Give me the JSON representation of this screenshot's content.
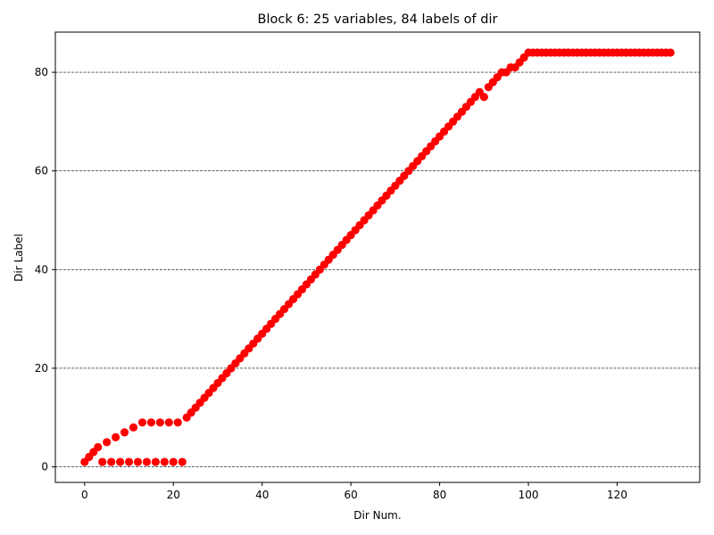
{
  "chart_data": {
    "type": "scatter",
    "title": "Block 6: 25 variables, 84 labels of dir",
    "xlabel": "Dir Num.",
    "ylabel": "Dir Label",
    "xlim": [
      -6.6,
      138.6
    ],
    "ylim": [
      -3.15,
      88.15
    ],
    "xticks": [
      0,
      20,
      40,
      60,
      80,
      100,
      120
    ],
    "yticks": [
      0,
      20,
      40,
      60,
      80
    ],
    "grid": {
      "axis": "y",
      "style": "dashed",
      "color": "#000000"
    },
    "marker_color": "#ff0000",
    "legend": "none",
    "points": [
      [
        0,
        1
      ],
      [
        1,
        2
      ],
      [
        2,
        3
      ],
      [
        3,
        4
      ],
      [
        4,
        1
      ],
      [
        5,
        5
      ],
      [
        6,
        1
      ],
      [
        7,
        6
      ],
      [
        8,
        1
      ],
      [
        9,
        7
      ],
      [
        10,
        1
      ],
      [
        11,
        8
      ],
      [
        12,
        1
      ],
      [
        13,
        9
      ],
      [
        14,
        1
      ],
      [
        15,
        9
      ],
      [
        16,
        1
      ],
      [
        17,
        9
      ],
      [
        18,
        1
      ],
      [
        19,
        9
      ],
      [
        20,
        1
      ],
      [
        21,
        9
      ],
      [
        22,
        1
      ],
      [
        23,
        10
      ],
      [
        24,
        11
      ],
      [
        25,
        12
      ],
      [
        26,
        13
      ],
      [
        27,
        14
      ],
      [
        28,
        15
      ],
      [
        29,
        16
      ],
      [
        30,
        17
      ],
      [
        31,
        18
      ],
      [
        32,
        19
      ],
      [
        33,
        20
      ],
      [
        34,
        21
      ],
      [
        35,
        22
      ],
      [
        36,
        23
      ],
      [
        37,
        24
      ],
      [
        38,
        25
      ],
      [
        39,
        26
      ],
      [
        40,
        27
      ],
      [
        41,
        28
      ],
      [
        42,
        29
      ],
      [
        43,
        30
      ],
      [
        44,
        31
      ],
      [
        45,
        32
      ],
      [
        46,
        33
      ],
      [
        47,
        34
      ],
      [
        48,
        35
      ],
      [
        49,
        36
      ],
      [
        50,
        37
      ],
      [
        51,
        38
      ],
      [
        52,
        39
      ],
      [
        53,
        40
      ],
      [
        54,
        41
      ],
      [
        55,
        42
      ],
      [
        56,
        43
      ],
      [
        57,
        44
      ],
      [
        58,
        45
      ],
      [
        59,
        46
      ],
      [
        60,
        47
      ],
      [
        61,
        48
      ],
      [
        62,
        49
      ],
      [
        63,
        50
      ],
      [
        64,
        51
      ],
      [
        65,
        52
      ],
      [
        66,
        53
      ],
      [
        67,
        54
      ],
      [
        68,
        55
      ],
      [
        69,
        56
      ],
      [
        70,
        57
      ],
      [
        71,
        58
      ],
      [
        72,
        59
      ],
      [
        73,
        60
      ],
      [
        74,
        61
      ],
      [
        75,
        62
      ],
      [
        76,
        63
      ],
      [
        77,
        64
      ],
      [
        78,
        65
      ],
      [
        79,
        66
      ],
      [
        80,
        67
      ],
      [
        81,
        68
      ],
      [
        82,
        69
      ],
      [
        83,
        70
      ],
      [
        84,
        71
      ],
      [
        85,
        72
      ],
      [
        86,
        73
      ],
      [
        87,
        74
      ],
      [
        88,
        75
      ],
      [
        89,
        76
      ],
      [
        90,
        75
      ],
      [
        91,
        77
      ],
      [
        92,
        78
      ],
      [
        93,
        79
      ],
      [
        94,
        80
      ],
      [
        95,
        80
      ],
      [
        96,
        81
      ],
      [
        97,
        81
      ],
      [
        98,
        82
      ],
      [
        99,
        83
      ],
      [
        100,
        84
      ],
      [
        101,
        84
      ],
      [
        102,
        84
      ],
      [
        103,
        84
      ],
      [
        104,
        84
      ],
      [
        105,
        84
      ],
      [
        106,
        84
      ],
      [
        107,
        84
      ],
      [
        108,
        84
      ],
      [
        109,
        84
      ],
      [
        110,
        84
      ],
      [
        111,
        84
      ],
      [
        112,
        84
      ],
      [
        113,
        84
      ],
      [
        114,
        84
      ],
      [
        115,
        84
      ],
      [
        116,
        84
      ],
      [
        117,
        84
      ],
      [
        118,
        84
      ],
      [
        119,
        84
      ],
      [
        120,
        84
      ],
      [
        121,
        84
      ],
      [
        122,
        84
      ],
      [
        123,
        84
      ],
      [
        124,
        84
      ],
      [
        125,
        84
      ],
      [
        126,
        84
      ],
      [
        127,
        84
      ],
      [
        128,
        84
      ],
      [
        129,
        84
      ],
      [
        130,
        84
      ],
      [
        131,
        84
      ],
      [
        132,
        84
      ]
    ]
  }
}
